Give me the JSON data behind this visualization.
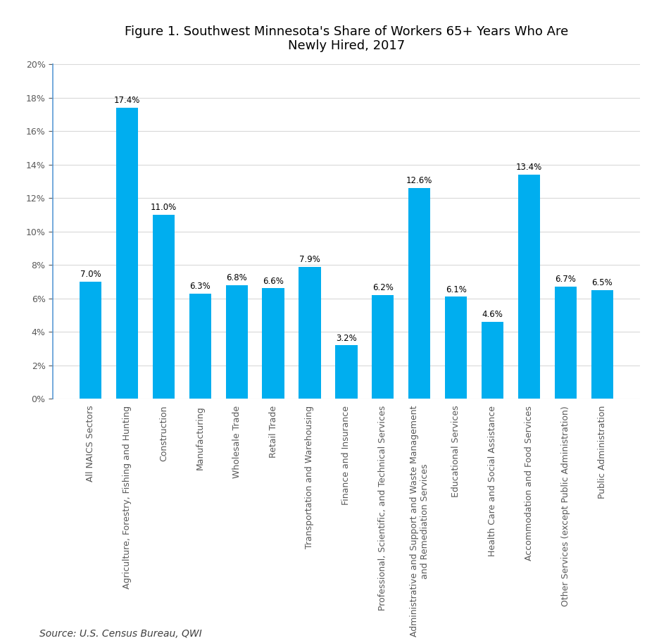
{
  "title": "Figure 1. Southwest Minnesota's Share of Workers 65+ Years Who Are\nNewly Hired, 2017",
  "categories": [
    "All NAICS Sectors",
    "Agriculture, Forestry, Fishing and Hunting",
    "Construction",
    "Manufacturing",
    "Wholesale Trade",
    "Retail Trade",
    "Transportation and Warehousing",
    "Finance and Insurance",
    "Professional, Scientific, and Technical Services",
    "Administrative and Support and Waste Management\nand Remediation Services",
    "Educational Services",
    "Health Care and Social Assistance",
    "Accommodation and Food Services",
    "Other Services (except Public Administration)",
    "Public Administration"
  ],
  "values": [
    7.0,
    17.4,
    11.0,
    6.3,
    6.8,
    6.6,
    7.9,
    3.2,
    6.2,
    12.6,
    6.1,
    4.6,
    13.4,
    6.7,
    6.5
  ],
  "bar_color": "#00AEEF",
  "ylim": [
    0,
    20
  ],
  "yticks": [
    0,
    2,
    4,
    6,
    8,
    10,
    12,
    14,
    16,
    18,
    20
  ],
  "source_text": "Source: U.S. Census Bureau, QWI",
  "background_color": "#FFFFFF",
  "title_fontsize": 13,
  "tick_label_fontsize": 9,
  "value_label_fontsize": 8.5,
  "source_fontsize": 10,
  "spine_color": "#5B9BD5",
  "grid_color": "#D9D9D9",
  "ytick_color": "#595959"
}
